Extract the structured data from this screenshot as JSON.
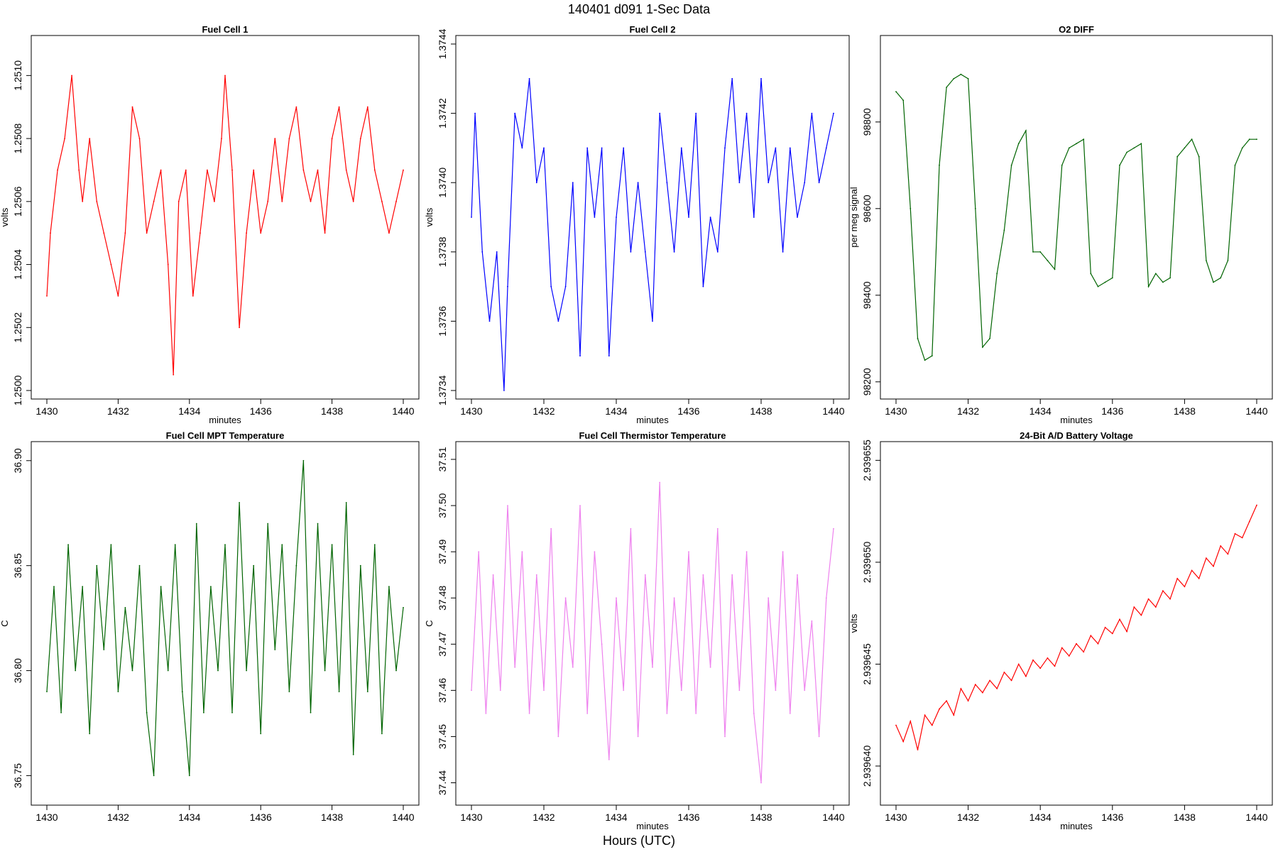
{
  "figure": {
    "title": "140401   d091   1-Sec Data",
    "xlabel": "Hours (UTC)"
  },
  "chart_data": [
    {
      "type": "line",
      "title": "Fuel Cell 1",
      "xlabel": "minutes",
      "ylabel": "volts",
      "color": "#ff0000",
      "xlim": [
        1430,
        1440
      ],
      "ylim": [
        1.25,
        1.2511
      ],
      "xticks": [
        "1430",
        "1432",
        "1434",
        "1436",
        "1438",
        "1440"
      ],
      "yticks": [
        "1.2500",
        "1.2502",
        "1.2504",
        "1.2506",
        "1.2508",
        "1.2510"
      ],
      "series": [
        {
          "x": [
            1430,
            1430.1,
            1430.3,
            1430.5,
            1430.7,
            1430.9,
            1431,
            1431.2,
            1431.4,
            1431.6,
            1431.8,
            1432,
            1432.2,
            1432.4,
            1432.6,
            1432.8,
            1433,
            1433.2,
            1433.4,
            1433.55,
            1433.7,
            1433.9,
            1434.1,
            1434.3,
            1434.5,
            1434.7,
            1434.9,
            1435,
            1435.2,
            1435.4,
            1435.6,
            1435.8,
            1436,
            1436.2,
            1436.4,
            1436.6,
            1436.8,
            1437,
            1437.2,
            1437.4,
            1437.6,
            1437.8,
            1438,
            1438.2,
            1438.4,
            1438.6,
            1438.8,
            1439,
            1439.2,
            1439.4,
            1439.6,
            1439.8,
            1440
          ],
          "y": [
            1.2503,
            1.2505,
            1.2507,
            1.2508,
            1.251,
            1.2507,
            1.2506,
            1.2508,
            1.2506,
            1.2505,
            1.2504,
            1.2503,
            1.2505,
            1.2509,
            1.2508,
            1.2505,
            1.2506,
            1.2507,
            1.2504,
            1.25005,
            1.2506,
            1.2507,
            1.2503,
            1.2505,
            1.2507,
            1.2506,
            1.2508,
            1.251,
            1.2507,
            1.2502,
            1.2505,
            1.2507,
            1.2505,
            1.2506,
            1.2508,
            1.2506,
            1.2508,
            1.2509,
            1.2507,
            1.2506,
            1.2507,
            1.2505,
            1.2508,
            1.2509,
            1.2507,
            1.2506,
            1.2508,
            1.2509,
            1.2507,
            1.2506,
            1.2505,
            1.2506,
            1.2507
          ]
        }
      ]
    },
    {
      "type": "line",
      "title": "Fuel Cell 2",
      "xlabel": "minutes",
      "ylabel": "volts",
      "color": "#0000ff",
      "xlim": [
        1430,
        1440
      ],
      "ylim": [
        1.3734,
        1.3744
      ],
      "xticks": [
        "1430",
        "1432",
        "1434",
        "1436",
        "1438",
        "1440"
      ],
      "yticks": [
        "1.3734",
        "1.3736",
        "1.3738",
        "1.3740",
        "1.3742",
        "1.3744"
      ],
      "series": [
        {
          "x": [
            1430,
            1430.1,
            1430.3,
            1430.5,
            1430.7,
            1430.9,
            1431,
            1431.2,
            1431.4,
            1431.6,
            1431.8,
            1432,
            1432.2,
            1432.4,
            1432.6,
            1432.8,
            1433,
            1433.2,
            1433.4,
            1433.6,
            1433.8,
            1434,
            1434.2,
            1434.4,
            1434.6,
            1434.8,
            1435,
            1435.2,
            1435.4,
            1435.6,
            1435.8,
            1436,
            1436.2,
            1436.4,
            1436.6,
            1436.8,
            1437,
            1437.2,
            1437.4,
            1437.6,
            1437.8,
            1438,
            1438.2,
            1438.4,
            1438.6,
            1438.8,
            1439,
            1439.2,
            1439.4,
            1439.6,
            1439.8,
            1440
          ],
          "y": [
            1.3739,
            1.3742,
            1.3738,
            1.3736,
            1.3738,
            1.3734,
            1.3737,
            1.3742,
            1.3741,
            1.3743,
            1.374,
            1.3741,
            1.3737,
            1.3736,
            1.3737,
            1.374,
            1.3735,
            1.3741,
            1.3739,
            1.3741,
            1.3735,
            1.3739,
            1.3741,
            1.3738,
            1.374,
            1.3738,
            1.3736,
            1.3742,
            1.374,
            1.3738,
            1.3741,
            1.3739,
            1.3742,
            1.3737,
            1.3739,
            1.3738,
            1.3741,
            1.3743,
            1.374,
            1.3742,
            1.3739,
            1.3743,
            1.374,
            1.3741,
            1.3738,
            1.3741,
            1.3739,
            1.374,
            1.3742,
            1.374,
            1.3741,
            1.3742
          ]
        }
      ]
    },
    {
      "type": "line",
      "title": "O2 DIFF",
      "xlabel": "minutes",
      "ylabel": "per meg signal",
      "color": "#006400",
      "xlim": [
        1430,
        1440
      ],
      "ylim": [
        98180,
        98980
      ],
      "xticks": [
        "1430",
        "1432",
        "1434",
        "1436",
        "1438",
        "1440"
      ],
      "yticks": [
        "98200",
        "98400",
        "98600",
        "98800"
      ],
      "series": [
        {
          "x": [
            1430,
            1430.2,
            1430.4,
            1430.6,
            1430.8,
            1431,
            1431.2,
            1431.4,
            1431.6,
            1431.8,
            1432,
            1432.2,
            1432.4,
            1432.6,
            1432.8,
            1433,
            1433.2,
            1433.4,
            1433.6,
            1433.8,
            1434,
            1434.2,
            1434.4,
            1434.6,
            1434.8,
            1435,
            1435.2,
            1435.4,
            1435.6,
            1435.8,
            1436,
            1436.2,
            1436.4,
            1436.6,
            1436.8,
            1437,
            1437.2,
            1437.4,
            1437.6,
            1437.8,
            1438,
            1438.2,
            1438.4,
            1438.6,
            1438.8,
            1439,
            1439.2,
            1439.4,
            1439.6,
            1439.8,
            1440
          ],
          "y": [
            98870,
            98850,
            98600,
            98300,
            98250,
            98260,
            98700,
            98880,
            98900,
            98910,
            98900,
            98600,
            98280,
            98300,
            98450,
            98550,
            98700,
            98750,
            98780,
            98500,
            98500,
            98480,
            98460,
            98700,
            98740,
            98750,
            98760,
            98450,
            98420,
            98430,
            98440,
            98700,
            98730,
            98740,
            98750,
            98420,
            98450,
            98430,
            98440,
            98720,
            98740,
            98760,
            98720,
            98480,
            98430,
            98440,
            98480,
            98700,
            98740,
            98760,
            98760
          ]
        }
      ]
    },
    {
      "type": "line",
      "title": "Fuel Cell MPT Temperature",
      "xlabel": "",
      "ylabel": "C",
      "color": "#006400",
      "xlim": [
        1430,
        1440
      ],
      "ylim": [
        36.74,
        36.905
      ],
      "xticks": [
        "1430",
        "1432",
        "1434",
        "1436",
        "1438",
        "1440"
      ],
      "yticks": [
        "36.75",
        "36.80",
        "36.85",
        "36.90"
      ],
      "series": [
        {
          "x": [
            1430,
            1430.2,
            1430.4,
            1430.6,
            1430.8,
            1431,
            1431.2,
            1431.4,
            1431.6,
            1431.8,
            1432,
            1432.2,
            1432.4,
            1432.6,
            1432.8,
            1433,
            1433.2,
            1433.4,
            1433.6,
            1433.8,
            1434,
            1434.2,
            1434.4,
            1434.6,
            1434.8,
            1435,
            1435.2,
            1435.4,
            1435.6,
            1435.8,
            1436,
            1436.2,
            1436.4,
            1436.6,
            1436.8,
            1437,
            1437.2,
            1437.4,
            1437.6,
            1437.8,
            1438,
            1438.2,
            1438.4,
            1438.6,
            1438.8,
            1439,
            1439.2,
            1439.4,
            1439.6,
            1439.8,
            1440
          ],
          "y": [
            36.79,
            36.84,
            36.78,
            36.86,
            36.8,
            36.84,
            36.77,
            36.85,
            36.81,
            36.86,
            36.79,
            36.83,
            36.8,
            36.85,
            36.78,
            36.75,
            36.84,
            36.8,
            36.86,
            36.79,
            36.75,
            36.87,
            36.78,
            36.84,
            36.8,
            36.86,
            36.78,
            36.88,
            36.8,
            36.85,
            36.77,
            36.87,
            36.81,
            36.86,
            36.79,
            36.85,
            36.9,
            36.78,
            36.87,
            36.8,
            36.86,
            36.79,
            36.88,
            36.76,
            36.85,
            36.79,
            36.86,
            36.77,
            36.84,
            36.8,
            36.83
          ]
        }
      ]
    },
    {
      "type": "line",
      "title": "Fuel Cell Thermistor Temperature",
      "xlabel": "minutes",
      "ylabel": "C",
      "color": "#ee82ee",
      "xlim": [
        1430,
        1440
      ],
      "ylim": [
        37.437,
        37.512
      ],
      "xticks": [
        "1430",
        "1432",
        "1434",
        "1436",
        "1438",
        "1440"
      ],
      "yticks": [
        "37.44",
        "37.45",
        "37.46",
        "37.47",
        "37.48",
        "37.49",
        "37.50",
        "37.51"
      ],
      "series": [
        {
          "x": [
            1430,
            1430.2,
            1430.4,
            1430.6,
            1430.8,
            1431,
            1431.2,
            1431.4,
            1431.6,
            1431.8,
            1432,
            1432.2,
            1432.4,
            1432.6,
            1432.8,
            1433,
            1433.2,
            1433.4,
            1433.6,
            1433.8,
            1434,
            1434.2,
            1434.4,
            1434.6,
            1434.8,
            1435,
            1435.2,
            1435.4,
            1435.6,
            1435.8,
            1436,
            1436.2,
            1436.4,
            1436.6,
            1436.8,
            1437,
            1437.2,
            1437.4,
            1437.6,
            1437.8,
            1438,
            1438.2,
            1438.4,
            1438.6,
            1438.8,
            1439,
            1439.2,
            1439.4,
            1439.6,
            1439.8,
            1440
          ],
          "y": [
            37.46,
            37.49,
            37.455,
            37.485,
            37.46,
            37.5,
            37.465,
            37.49,
            37.455,
            37.485,
            37.46,
            37.495,
            37.45,
            37.48,
            37.465,
            37.5,
            37.455,
            37.49,
            37.47,
            37.445,
            37.48,
            37.46,
            37.495,
            37.45,
            37.485,
            37.465,
            37.505,
            37.455,
            37.48,
            37.46,
            37.49,
            37.455,
            37.485,
            37.465,
            37.495,
            37.45,
            37.485,
            37.46,
            37.49,
            37.455,
            37.44,
            37.48,
            37.46,
            37.49,
            37.455,
            37.485,
            37.46,
            37.475,
            37.45,
            37.48,
            37.495
          ]
        }
      ]
    },
    {
      "type": "line",
      "title": "24-Bit A/D Battery Voltage",
      "xlabel": "minutes",
      "ylabel": "volts",
      "color": "#ff0000",
      "xlim": [
        1430,
        1440
      ],
      "ylim": [
        2.9396385,
        2.9396555
      ],
      "xticks": [
        "1430",
        "1432",
        "1434",
        "1436",
        "1438",
        "1440"
      ],
      "yticks": [
        "2.939640",
        "2.939645",
        "2.939650",
        "2.939655"
      ],
      "series": [
        {
          "x": [
            1430,
            1430.2,
            1430.4,
            1430.6,
            1430.8,
            1431,
            1431.2,
            1431.4,
            1431.6,
            1431.8,
            1432,
            1432.2,
            1432.4,
            1432.6,
            1432.8,
            1433,
            1433.2,
            1433.4,
            1433.6,
            1433.8,
            1434,
            1434.2,
            1434.4,
            1434.6,
            1434.8,
            1435,
            1435.2,
            1435.4,
            1435.6,
            1435.8,
            1436,
            1436.2,
            1436.4,
            1436.6,
            1436.8,
            1437,
            1437.2,
            1437.4,
            1437.6,
            1437.8,
            1438,
            1438.2,
            1438.4,
            1438.6,
            1438.8,
            1439,
            1439.2,
            1439.4,
            1439.6,
            1439.8,
            1440
          ],
          "y": [
            2.939642,
            2.9396412,
            2.9396422,
            2.9396408,
            2.9396425,
            2.939642,
            2.9396428,
            2.9396432,
            2.9396425,
            2.9396438,
            2.9396432,
            2.939644,
            2.9396436,
            2.9396442,
            2.9396438,
            2.9396446,
            2.9396442,
            2.939645,
            2.9396444,
            2.9396452,
            2.9396448,
            2.9396453,
            2.9396449,
            2.9396458,
            2.9396454,
            2.939646,
            2.9396456,
            2.9396464,
            2.939646,
            2.9396468,
            2.9396465,
            2.9396472,
            2.9396466,
            2.9396478,
            2.9396474,
            2.9396482,
            2.9396478,
            2.9396486,
            2.9396482,
            2.9396492,
            2.9396488,
            2.9396496,
            2.9396492,
            2.9396502,
            2.9396498,
            2.9396508,
            2.9396504,
            2.9396514,
            2.9396512,
            2.939652,
            2.9396528
          ]
        }
      ]
    }
  ]
}
